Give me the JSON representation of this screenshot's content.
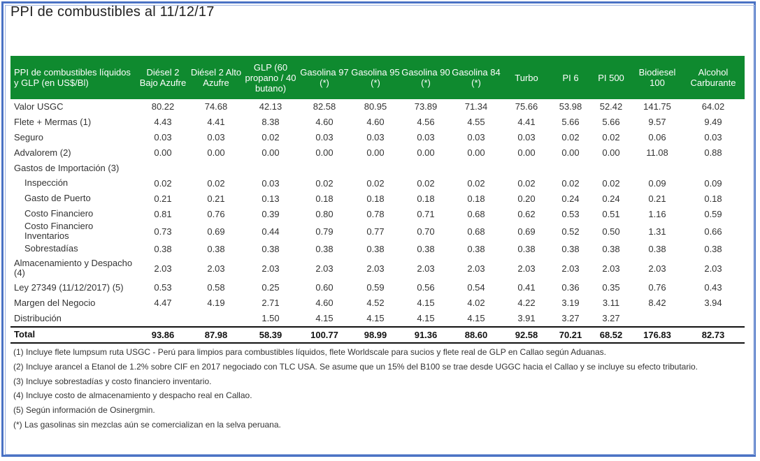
{
  "title": "PPI de combustibles al 11/12/17",
  "header": {
    "first": "PPI de combustibles líquidos y GLP (en US$/Bl)",
    "columns": [
      "Diésel 2 Bajo Azufre",
      "Diésel 2 Alto Azufre",
      "GLP (60 propano / 40 butano)",
      "Gasolina 97 (*)",
      "Gasolina 95 (*)",
      "Gasolina 90 (*)",
      "Gasolina 84 (*)",
      "Turbo",
      "PI 6",
      "PI 500",
      "Biodiesel 100",
      "Alcohol Carburante"
    ]
  },
  "rows": [
    {
      "label": "Valor USGC",
      "values": [
        "80.22",
        "74.68",
        "42.13",
        "82.58",
        "80.95",
        "73.89",
        "71.34",
        "75.66",
        "53.98",
        "52.42",
        "141.75",
        "64.02"
      ]
    },
    {
      "label": "Flete + Mermas (1)",
      "values": [
        "4.43",
        "4.41",
        "8.38",
        "4.60",
        "4.60",
        "4.56",
        "4.55",
        "4.41",
        "5.66",
        "5.66",
        "9.57",
        "9.49"
      ]
    },
    {
      "label": "Seguro",
      "values": [
        "0.03",
        "0.03",
        "0.02",
        "0.03",
        "0.03",
        "0.03",
        "0.03",
        "0.03",
        "0.02",
        "0.02",
        "0.06",
        "0.03"
      ]
    },
    {
      "label": "Advalorem (2)",
      "values": [
        "0.00",
        "0.00",
        "0.00",
        "0.00",
        "0.00",
        "0.00",
        "0.00",
        "0.00",
        "0.00",
        "0.00",
        "11.08",
        "0.88"
      ]
    },
    {
      "label": "Gastos de Importación (3)",
      "values": [
        "",
        "",
        "",
        "",
        "",
        "",
        "",
        "",
        "",
        "",
        "",
        ""
      ]
    },
    {
      "label": "Inspección",
      "sub": true,
      "values": [
        "0.02",
        "0.02",
        "0.03",
        "0.02",
        "0.02",
        "0.02",
        "0.02",
        "0.02",
        "0.02",
        "0.02",
        "0.09",
        "0.09"
      ]
    },
    {
      "label": "Gasto de Puerto",
      "sub": true,
      "values": [
        "0.21",
        "0.21",
        "0.13",
        "0.18",
        "0.18",
        "0.18",
        "0.18",
        "0.20",
        "0.24",
        "0.24",
        "0.21",
        "0.18"
      ]
    },
    {
      "label": "Costo Financiero",
      "sub": true,
      "values": [
        "0.81",
        "0.76",
        "0.39",
        "0.80",
        "0.78",
        "0.71",
        "0.68",
        "0.62",
        "0.53",
        "0.51",
        "1.16",
        "0.59"
      ]
    },
    {
      "label": "Costo Financiero Inventarios",
      "sub": true,
      "values": [
        "0.73",
        "0.69",
        "0.44",
        "0.79",
        "0.77",
        "0.70",
        "0.68",
        "0.69",
        "0.52",
        "0.50",
        "1.31",
        "0.66"
      ]
    },
    {
      "label": "Sobrestadías",
      "sub": true,
      "values": [
        "0.38",
        "0.38",
        "0.38",
        "0.38",
        "0.38",
        "0.38",
        "0.38",
        "0.38",
        "0.38",
        "0.38",
        "0.38",
        "0.38"
      ]
    },
    {
      "label": "Almacenamiento y Despacho (4)",
      "tall": true,
      "values": [
        "2.03",
        "2.03",
        "2.03",
        "2.03",
        "2.03",
        "2.03",
        "2.03",
        "2.03",
        "2.03",
        "2.03",
        "2.03",
        "2.03"
      ]
    },
    {
      "label": "Ley 27349 (11/12/2017) (5)",
      "values": [
        "0.53",
        "0.58",
        "0.25",
        "0.60",
        "0.59",
        "0.56",
        "0.54",
        "0.41",
        "0.36",
        "0.35",
        "0.76",
        "0.43"
      ]
    },
    {
      "label": "Margen del Negocio",
      "values": [
        "4.47",
        "4.19",
        "2.71",
        "4.60",
        "4.52",
        "4.15",
        "4.02",
        "4.22",
        "3.19",
        "3.11",
        "8.42",
        "3.94"
      ]
    },
    {
      "label": "Distribución",
      "values": [
        "",
        "",
        "1.50",
        "4.15",
        "4.15",
        "4.15",
        "4.15",
        "3.91",
        "3.27",
        "3.27",
        "",
        ""
      ]
    }
  ],
  "total": {
    "label": "Total",
    "values": [
      "93.86",
      "87.98",
      "58.39",
      "100.77",
      "98.99",
      "91.36",
      "88.60",
      "92.58",
      "70.21",
      "68.52",
      "176.83",
      "82.73"
    ]
  },
  "notes": [
    "(1) Incluye flete lumpsum ruta USGC - Perú para limpios para combustibles líquidos, flete Worldscale para sucios y flete real de GLP en Callao según Aduanas.",
    "(2) Incluye arancel a Etanol de 1.2% sobre CIF en 2017 negociado con TLC USA. Se asume que un 15% del B100 se trae desde UGGC hacia el Callao y se incluye su efecto tributario.",
    "(3) Incluye sobrestadías y costo financiero inventario.",
    "(4) Incluye costo de almacenamiento y despacho real en Callao.",
    "(5) Según información de Osinergmin.",
    "(*) Las gasolinas sin mezclas aún se comercializan en la selva peruana."
  ],
  "colors": {
    "header_bg": "#0f8a2f",
    "frame": "#4a72c4"
  }
}
